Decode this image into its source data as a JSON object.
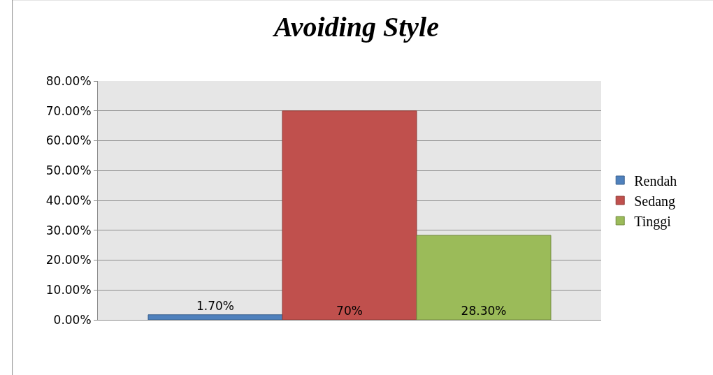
{
  "chart_data": {
    "type": "bar",
    "title": "Avoiding Style",
    "categories": [
      null
    ],
    "series": [
      {
        "name": "Rendah",
        "color": "#4f81bd",
        "values": [
          1.7
        ],
        "value_labels": [
          "1.70%"
        ]
      },
      {
        "name": "Sedang",
        "color": "#c0504d",
        "values": [
          70
        ],
        "value_labels": [
          "70%"
        ]
      },
      {
        "name": "Tinggi",
        "color": "#9bbb59",
        "values": [
          28.3
        ],
        "value_labels": [
          "28.30%"
        ]
      }
    ],
    "ylim": [
      0,
      80
    ],
    "yticks": [
      {
        "value": 0,
        "label": "0.00%"
      },
      {
        "value": 10,
        "label": "10.00%"
      },
      {
        "value": 20,
        "label": "20.00%"
      },
      {
        "value": 30,
        "label": "30.00%"
      },
      {
        "value": 40,
        "label": "40.00%"
      },
      {
        "value": 50,
        "label": "50.00%"
      },
      {
        "value": 60,
        "label": "60.00%"
      },
      {
        "value": 70,
        "label": "70.00%"
      },
      {
        "value": 80,
        "label": "80.00%"
      }
    ],
    "grid": "y",
    "legend": "right"
  }
}
